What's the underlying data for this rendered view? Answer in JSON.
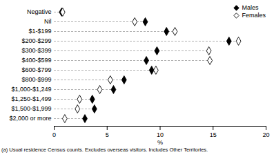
{
  "chart_data": {
    "type": "dot",
    "orientation": "horizontal",
    "categories": [
      "Negative",
      "Nil",
      "$1-$199",
      "$200-$299",
      "$300-$399",
      "$400-$599",
      "$600-$799",
      "$800-$999",
      "$1,000-$1,249",
      "$1,250-$1,499",
      "$1,500-$1,999",
      "$2,000 or more"
    ],
    "series": [
      {
        "name": "Males",
        "color": "#000000",
        "marker": "diamond",
        "values": [
          0.7,
          8.6,
          10.6,
          16.5,
          9.7,
          8.7,
          9.2,
          6.6,
          5.6,
          3.6,
          3.8,
          2.9
        ]
      },
      {
        "name": "Females",
        "color": "#000000",
        "marker": "diamond-open",
        "values": [
          0.8,
          7.6,
          11.4,
          17.4,
          14.6,
          14.7,
          9.6,
          5.3,
          4.3,
          2.4,
          2.2,
          1.0
        ]
      }
    ],
    "xlabel": "%",
    "xlim": [
      0,
      20
    ],
    "xticks": [
      0,
      5,
      10,
      15,
      20
    ],
    "legend": "top-right",
    "annotations": [
      "(a) Usual residence Census counts. Excludes overseas visitors. Includes Other Territories."
    ]
  }
}
